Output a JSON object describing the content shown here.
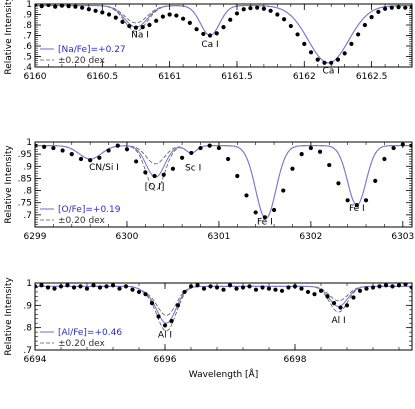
{
  "figure": {
    "xlabel": "Wavelength [Å]",
    "ylabel": "Relative Intensity"
  },
  "colors": {
    "model": "#7b7bd6",
    "variation": "#555555",
    "observed": "#000000",
    "legend_text": "#2a2ad0"
  },
  "chart_data": [
    {
      "type": "line",
      "name": "Na",
      "xlim": [
        6160.0,
        6162.8
      ],
      "ylim": [
        0.4,
        1.0
      ],
      "xticks": [
        6160,
        6160.5,
        6161,
        6161.5,
        6162,
        6162.5
      ],
      "xtick_labels": [
        "6160",
        "6160.5",
        "6161",
        "6161.5",
        "6162",
        "6162.5"
      ],
      "yticks": [
        0.4,
        0.5,
        0.6,
        0.7,
        0.8,
        0.9,
        1.0
      ],
      "ytick_labels": [
        ".4",
        ".5",
        ".6",
        ".7",
        ".8",
        ".9",
        "1"
      ],
      "ylabel": "Relative Intensity",
      "legend": [
        "[Na/Fe]=+0.27",
        "±0.20 dex"
      ],
      "annotations": [
        {
          "text": "Na I",
          "x": 6160.78,
          "y": 0.68
        },
        {
          "text": "Ca I",
          "x": 6161.3,
          "y": 0.59
        },
        {
          "text": "Ca I",
          "x": 6162.2,
          "y": 0.34
        }
      ],
      "continuum": 0.985,
      "lines": [
        {
          "center": 6160.75,
          "depth": 0.205,
          "width": 0.085,
          "vary": 0.04
        },
        {
          "center": 6161.3,
          "depth": 0.285,
          "width": 0.07,
          "vary": 0
        },
        {
          "center": 6162.18,
          "depth": 0.545,
          "width": 0.15,
          "vary": 0
        }
      ],
      "observed": {
        "x": [
          6160.0,
          6160.05,
          6160.1,
          6160.15,
          6160.2,
          6160.25,
          6160.3,
          6160.35,
          6160.4,
          6160.45,
          6160.5,
          6160.55,
          6160.6,
          6160.65,
          6160.7,
          6160.75,
          6160.8,
          6160.85,
          6160.9,
          6160.95,
          6161.0,
          6161.05,
          6161.1,
          6161.15,
          6161.2,
          6161.25,
          6161.3,
          6161.35,
          6161.4,
          6161.45,
          6161.5,
          6161.55,
          6161.6,
          6161.65,
          6161.7,
          6161.75,
          6161.8,
          6161.85,
          6161.9,
          6161.95,
          6162.0,
          6162.05,
          6162.1,
          6162.15,
          6162.2,
          6162.25,
          6162.3,
          6162.35,
          6162.4,
          6162.45,
          6162.5,
          6162.55,
          6162.6,
          6162.65,
          6162.7,
          6162.75,
          6162.8
        ],
        "y": [
          0.99,
          0.98,
          0.99,
          0.975,
          0.985,
          0.98,
          0.975,
          0.965,
          0.95,
          0.935,
          0.92,
          0.9,
          0.87,
          0.83,
          0.79,
          0.775,
          0.78,
          0.8,
          0.84,
          0.88,
          0.9,
          0.89,
          0.86,
          0.82,
          0.76,
          0.715,
          0.7,
          0.72,
          0.78,
          0.85,
          0.91,
          0.95,
          0.96,
          0.965,
          0.955,
          0.935,
          0.9,
          0.855,
          0.79,
          0.71,
          0.62,
          0.54,
          0.47,
          0.44,
          0.44,
          0.47,
          0.53,
          0.62,
          0.71,
          0.8,
          0.875,
          0.925,
          0.955,
          0.965,
          0.97,
          0.965,
          0.97
        ]
      }
    },
    {
      "type": "line",
      "name": "O",
      "xlim": [
        6299.0,
        6303.1
      ],
      "ylim": [
        0.65,
        1.0
      ],
      "xticks": [
        6299,
        6300,
        6301,
        6302,
        6303
      ],
      "xtick_labels": [
        "6299",
        "6300",
        "6301",
        "6302",
        "6303"
      ],
      "yticks": [
        0.65,
        0.7,
        0.75,
        0.8,
        0.85,
        0.9,
        0.95,
        1.0
      ],
      "ytick_labels": [
        "",
        ".7",
        ".75",
        ".8",
        ".85",
        ".9",
        ".95",
        "1"
      ],
      "ylabel": "Relative Intensity",
      "legend": [
        "[O/Fe]=+0.19",
        "±0.20 dex"
      ],
      "annotations": [
        {
          "text": "CN/Si I",
          "x": 6299.75,
          "y": 0.885
        },
        {
          "text": "[O I]",
          "x": 6300.3,
          "y": 0.805
        },
        {
          "text": "Sc I",
          "x": 6300.72,
          "y": 0.883
        },
        {
          "text": "Fe I",
          "x": 6301.5,
          "y": 0.66
        },
        {
          "text": "Fe I",
          "x": 6302.5,
          "y": 0.715
        }
      ],
      "continuum": 0.985,
      "lines": [
        {
          "center": 6299.6,
          "depth": 0.055,
          "width": 0.12,
          "vary": 0
        },
        {
          "center": 6300.31,
          "depth": 0.13,
          "width": 0.1,
          "vary": 0.055
        },
        {
          "center": 6300.7,
          "depth": 0.03,
          "width": 0.06,
          "vary": 0
        },
        {
          "center": 6301.51,
          "depth": 0.3,
          "width": 0.11,
          "vary": 0
        },
        {
          "center": 6302.5,
          "depth": 0.245,
          "width": 0.1,
          "vary": 0
        }
      ],
      "observed": {
        "x": [
          6299.0,
          6299.1,
          6299.2,
          6299.3,
          6299.4,
          6299.5,
          6299.6,
          6299.7,
          6299.8,
          6299.9,
          6300.0,
          6300.1,
          6300.2,
          6300.3,
          6300.4,
          6300.5,
          6300.6,
          6300.7,
          6300.8,
          6300.9,
          6301.0,
          6301.1,
          6301.2,
          6301.3,
          6301.4,
          6301.5,
          6301.6,
          6301.7,
          6301.8,
          6301.9,
          6302.0,
          6302.1,
          6302.2,
          6302.3,
          6302.4,
          6302.5,
          6302.6,
          6302.7,
          6302.8,
          6302.9,
          6303.0,
          6303.1
        ],
        "y": [
          0.985,
          0.98,
          0.975,
          0.965,
          0.95,
          0.93,
          0.925,
          0.935,
          0.965,
          0.985,
          0.97,
          0.92,
          0.875,
          0.86,
          0.865,
          0.89,
          0.935,
          0.955,
          0.975,
          0.985,
          0.975,
          0.93,
          0.86,
          0.78,
          0.71,
          0.69,
          0.72,
          0.8,
          0.89,
          0.95,
          0.975,
          0.96,
          0.905,
          0.83,
          0.76,
          0.74,
          0.76,
          0.84,
          0.93,
          0.975,
          0.99,
          0.985
        ]
      }
    },
    {
      "type": "line",
      "name": "Al",
      "xlim": [
        6694.0,
        6699.8
      ],
      "ylim": [
        0.7,
        1.0
      ],
      "xticks": [
        6694,
        6696,
        6698
      ],
      "xtick_labels": [
        "6694",
        "6696",
        "6698"
      ],
      "yticks": [
        0.7,
        0.8,
        0.9,
        1.0
      ],
      "ytick_labels": [
        ".7",
        ".8",
        ".9",
        "1"
      ],
      "ylabel": "Relative Intensity",
      "xlabel": "Wavelength [Å]",
      "legend": [
        "[Al/Fe]=+0.46",
        "±0.20 dex"
      ],
      "annotations": [
        {
          "text": "Al I",
          "x": 6696.0,
          "y": 0.755
        },
        {
          "text": "Al I",
          "x": 6698.67,
          "y": 0.82
        }
      ],
      "continuum": 0.985,
      "lines": [
        {
          "center": 6696.02,
          "depth": 0.165,
          "width": 0.15,
          "vary": 0.035
        },
        {
          "center": 6698.67,
          "depth": 0.09,
          "width": 0.14,
          "vary": 0.025
        },
        {
          "center": 6695.7,
          "depth": 0.015,
          "width": 0.1,
          "vary": 0
        }
      ],
      "observed": {
        "x": [
          6694.0,
          6694.1,
          6694.2,
          6694.3,
          6694.4,
          6694.5,
          6694.6,
          6694.7,
          6694.8,
          6694.9,
          6695.0,
          6695.1,
          6695.2,
          6695.3,
          6695.4,
          6695.5,
          6695.6,
          6695.7,
          6695.8,
          6695.9,
          6696.0,
          6696.1,
          6696.2,
          6696.3,
          6696.4,
          6696.5,
          6696.6,
          6696.7,
          6696.8,
          6696.9,
          6697.0,
          6697.1,
          6697.2,
          6697.3,
          6697.4,
          6697.5,
          6697.6,
          6697.7,
          6697.8,
          6697.9,
          6698.0,
          6698.1,
          6698.2,
          6698.3,
          6698.4,
          6698.5,
          6698.6,
          6698.7,
          6698.8,
          6698.9,
          6699.0,
          6699.1,
          6699.2,
          6699.3,
          6699.4,
          6699.5,
          6699.6,
          6699.7,
          6699.8
        ],
        "y": [
          0.985,
          0.99,
          0.98,
          0.975,
          0.985,
          0.99,
          0.98,
          0.985,
          0.975,
          0.99,
          0.98,
          0.985,
          0.99,
          0.975,
          0.985,
          0.97,
          0.96,
          0.95,
          0.91,
          0.85,
          0.81,
          0.83,
          0.9,
          0.96,
          0.985,
          0.99,
          0.975,
          0.985,
          0.98,
          0.97,
          0.99,
          0.975,
          0.98,
          0.985,
          0.97,
          0.98,
          0.975,
          0.97,
          0.965,
          0.98,
          0.985,
          0.975,
          0.96,
          0.95,
          0.965,
          0.94,
          0.91,
          0.89,
          0.9,
          0.935,
          0.965,
          0.975,
          0.98,
          0.985,
          0.99,
          0.985,
          0.99,
          0.995,
          0.98
        ]
      }
    }
  ]
}
